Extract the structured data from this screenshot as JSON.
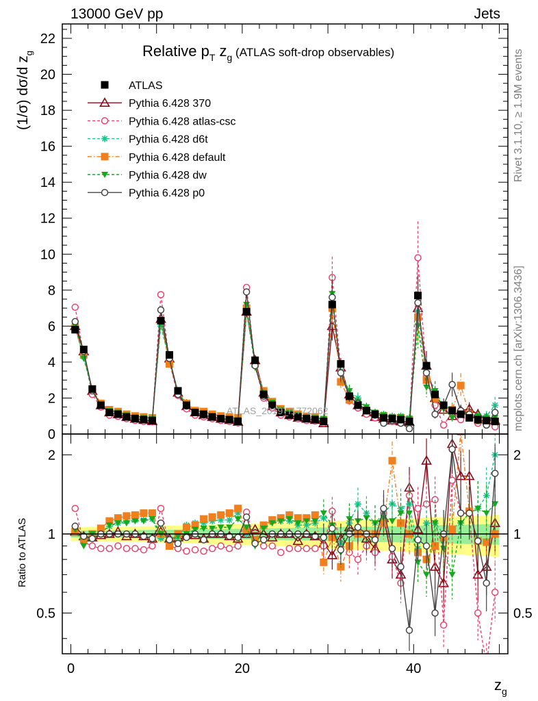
{
  "chart_data": {
    "type": "line",
    "header_left": "13000 GeV pp",
    "header_right": "Jets",
    "title_main": "Relative p",
    "title_sub_T": "T",
    "title_zg": " z",
    "title_sub_g": "g",
    "title_paren": " (ATLAS soft-drop observables)",
    "ylabel": "(1/σ) dσ/d z",
    "ylabel_sub": "g",
    "ratio_ylabel": "Ratio to ATLAS",
    "xlabel": "z",
    "xlabel_sub": "g",
    "watermark": "ATLAS_2019_I1772062",
    "side_text_1": "Rivet 3.1.10, ≥ 1.9M events",
    "side_text_2": "mcplots.cern.ch [arXiv:1306.3436]",
    "xlim": [
      -1,
      51
    ],
    "ylim": [
      0,
      22.8
    ],
    "ratio_ylim": [
      0.35,
      2.4
    ],
    "x_ticks": [
      0,
      20,
      40
    ],
    "x_tick_labels": [
      "0",
      "20",
      "40"
    ],
    "y_ticks": [
      0,
      2,
      4,
      6,
      8,
      10,
      12,
      14,
      16,
      18,
      20,
      22
    ],
    "y_tick_labels": [
      "0",
      "2",
      "4",
      "6",
      "8",
      "10",
      "12",
      "14",
      "16",
      "18",
      "20",
      "22"
    ],
    "ratio_ticks": [
      0.5,
      1,
      2
    ],
    "ratio_tick_labels_left": [
      "0.5",
      "1",
      "2"
    ],
    "ratio_tick_labels_right": [
      "0.5",
      "1",
      "2"
    ],
    "x": [
      0.5,
      1.5,
      2.5,
      3.5,
      4.5,
      5.5,
      6.5,
      7.5,
      8.5,
      9.5,
      10.5,
      11.5,
      12.5,
      13.5,
      14.5,
      15.5,
      16.5,
      17.5,
      18.5,
      19.5,
      20.5,
      21.5,
      22.5,
      23.5,
      24.5,
      25.5,
      26.5,
      27.5,
      28.5,
      29.5,
      30.5,
      31.5,
      32.5,
      33.5,
      34.5,
      35.5,
      36.5,
      37.5,
      38.5,
      39.5,
      40.5,
      41.5,
      42.5,
      43.5,
      44.5,
      45.5,
      46.5,
      47.5,
      48.5,
      49.5
    ],
    "series": [
      {
        "name": "ATLAS",
        "color": "#000000",
        "marker": "square-filled",
        "dash": "none",
        "values": [
          5.8,
          4.7,
          2.5,
          1.6,
          1.2,
          1.1,
          0.95,
          0.85,
          0.8,
          0.75,
          6.3,
          4.4,
          2.4,
          1.6,
          1.2,
          1.1,
          0.95,
          0.85,
          0.8,
          0.7,
          6.8,
          4.1,
          2.2,
          1.6,
          1.2,
          1.05,
          0.95,
          0.85,
          0.8,
          0.7,
          7.2,
          3.9,
          2.1,
          1.6,
          1.3,
          1.1,
          0.9,
          0.85,
          0.8,
          0.7,
          7.7,
          3.8,
          2.2,
          1.6,
          1.3,
          1.1,
          0.9,
          0.8,
          0.75,
          0.7
        ],
        "ratio": [
          1,
          1,
          1,
          1,
          1,
          1,
          1,
          1,
          1,
          1,
          1,
          1,
          1,
          1,
          1,
          1,
          1,
          1,
          1,
          1,
          1,
          1,
          1,
          1,
          1,
          1,
          1,
          1,
          1,
          1,
          1,
          1,
          1,
          1,
          1,
          1,
          1,
          1,
          1,
          1,
          1,
          1,
          1,
          1,
          1,
          1,
          1,
          1,
          1,
          1
        ]
      },
      {
        "name": "Pythia 6.428 370",
        "color": "#8b0a1a",
        "marker": "triangle-open",
        "dash": "none",
        "values": [
          6.0,
          4.6,
          2.4,
          1.6,
          1.2,
          1.1,
          0.95,
          0.85,
          0.78,
          0.72,
          6.4,
          4.2,
          2.3,
          1.55,
          1.2,
          1.05,
          0.95,
          0.85,
          0.78,
          0.68,
          6.8,
          4.1,
          2.3,
          1.55,
          1.2,
          1.05,
          0.9,
          0.85,
          0.78,
          0.6,
          6.0,
          3.7,
          2.2,
          1.6,
          1.2,
          0.95,
          0.85,
          0.75,
          0.7,
          0.68,
          7.0,
          3.8,
          2.0,
          1.35,
          1.0,
          1.3,
          1.4,
          1.1,
          0.9,
          0.75
        ],
        "ratio": [
          1.02,
          0.98,
          0.97,
          0.99,
          1.0,
          1.02,
          0.98,
          1.0,
          0.98,
          0.96,
          1.02,
          0.96,
          0.97,
          0.99,
          0.99,
          0.96,
          1.0,
          1.0,
          0.98,
          0.96,
          1.0,
          1.04,
          1.0,
          0.97,
          1.0,
          1.0,
          0.94,
          1.0,
          0.98,
          0.92,
          0.83,
          0.96,
          1.06,
          1.02,
          0.96,
          0.88,
          1.15,
          0.8,
          0.7,
          1.5,
          1.04,
          1.9,
          0.75,
          0.65,
          2.2,
          1.66,
          1.66,
          0.7,
          0.75,
          1.1
        ]
      },
      {
        "name": "Pythia 6.428 atlas-csc",
        "color": "#e8436e",
        "marker": "circle-open",
        "dash": "dashed",
        "values": [
          7.05,
          4.4,
          2.2,
          1.5,
          1.05,
          0.98,
          0.85,
          0.75,
          0.7,
          0.68,
          7.75,
          4.0,
          2.15,
          1.4,
          1.05,
          0.95,
          0.85,
          0.75,
          0.7,
          0.62,
          8.15,
          3.8,
          2.0,
          1.45,
          1.05,
          0.95,
          0.85,
          0.75,
          0.72,
          0.6,
          8.7,
          3.6,
          1.85,
          1.45,
          1.1,
          0.9,
          0.8,
          0.7,
          0.7,
          0.62,
          9.8,
          3.2,
          1.6,
          0.5,
          1.2,
          0.8,
          1.0,
          0.6,
          0.5,
          0.4
        ],
        "ratio": [
          1.25,
          0.93,
          0.9,
          0.88,
          0.88,
          0.9,
          0.88,
          0.88,
          0.87,
          0.9,
          1.25,
          0.9,
          0.88,
          0.86,
          0.87,
          0.86,
          0.88,
          0.9,
          0.88,
          0.9,
          1.21,
          0.93,
          0.9,
          0.9,
          0.85,
          0.88,
          0.88,
          0.88,
          0.88,
          0.9,
          1.22,
          0.92,
          0.85,
          0.8,
          0.9,
          0.85,
          1.2,
          0.82,
          0.65,
          1.4,
          1.25,
          1.3,
          1.35,
          0.45,
          1.6,
          1.2,
          1.2,
          0.5,
          0.3,
          0.6
        ]
      },
      {
        "name": "Pythia 6.428 d6t",
        "color": "#19c28a",
        "marker": "star",
        "dash": "dashed",
        "values": [
          5.9,
          4.3,
          2.4,
          1.65,
          1.3,
          1.2,
          1.05,
          0.95,
          0.9,
          0.85,
          6.0,
          4.1,
          2.3,
          1.75,
          1.3,
          1.2,
          1.05,
          0.95,
          0.9,
          0.85,
          6.8,
          3.8,
          2.4,
          1.8,
          1.35,
          1.2,
          1.0,
          0.9,
          0.9,
          0.8,
          7.6,
          3.5,
          2.3,
          2.0,
          1.5,
          1.2,
          1.1,
          1.0,
          1.0,
          0.9,
          6.8,
          3.5,
          2.4,
          1.6,
          1.4,
          1.2,
          1.1,
          1.0,
          1.0,
          1.6
        ],
        "ratio": [
          1.05,
          0.94,
          0.97,
          1.02,
          1.07,
          1.1,
          1.12,
          1.13,
          1.13,
          1.14,
          0.96,
          0.94,
          0.97,
          1.08,
          1.1,
          1.1,
          1.12,
          1.13,
          1.13,
          1.2,
          1.0,
          0.94,
          1.08,
          1.13,
          1.12,
          1.12,
          1.08,
          1.08,
          1.1,
          1.15,
          1.06,
          0.92,
          1.1,
          1.3,
          1.2,
          1.1,
          1.2,
          1.3,
          1.25,
          1.3,
          0.88,
          1.1,
          1.1,
          1.0,
          1.05,
          1.1,
          1.2,
          1.25,
          1.4,
          2.0
        ]
      },
      {
        "name": "Pythia 6.428 default",
        "color": "#f07f1e",
        "marker": "square-filled",
        "dash": "dashdot",
        "values": [
          5.9,
          4.4,
          2.5,
          1.7,
          1.35,
          1.25,
          1.1,
          1.0,
          0.95,
          0.9,
          6.3,
          3.9,
          2.4,
          1.7,
          1.3,
          1.25,
          1.1,
          1.0,
          0.95,
          0.9,
          7.0,
          3.9,
          2.4,
          1.8,
          1.4,
          1.25,
          1.1,
          0.98,
          0.95,
          0.8,
          7.0,
          2.9,
          1.9,
          1.6,
          1.3,
          1.1,
          1.0,
          0.9,
          0.9,
          0.8,
          6.5,
          3.0,
          2.0,
          1.55,
          1.35,
          2.7,
          1.1,
          0.75,
          0.7,
          0.7
        ],
        "ratio": [
          1.02,
          0.95,
          1.0,
          1.05,
          1.12,
          1.15,
          1.17,
          1.18,
          1.2,
          1.2,
          1.0,
          0.9,
          1.0,
          1.06,
          1.08,
          1.14,
          1.16,
          1.18,
          1.2,
          1.25,
          1.03,
          0.95,
          1.08,
          1.13,
          1.15,
          1.18,
          1.15,
          1.15,
          1.18,
          0.78,
          0.97,
          0.75,
          0.9,
          1.0,
          1.0,
          1.0,
          1.1,
          1.9,
          1.1,
          1.0,
          0.85,
          0.8,
          0.9,
          0.97,
          1.04,
          2.45,
          1.22,
          0.94,
          0.93,
          1.0
        ]
      },
      {
        "name": "Pythia 6.428 dw",
        "color": "#18a81e",
        "marker": "triangle-down-filled",
        "dash": "dashed",
        "values": [
          6.0,
          4.2,
          2.5,
          1.6,
          1.3,
          1.2,
          1.05,
          0.95,
          0.9,
          0.85,
          6.3,
          4.2,
          2.35,
          1.6,
          1.25,
          1.15,
          1.0,
          0.9,
          0.85,
          0.8,
          7.2,
          3.7,
          2.3,
          1.75,
          1.35,
          1.2,
          1.05,
          0.95,
          0.9,
          0.85,
          7.8,
          3.3,
          2.4,
          1.8,
          1.5,
          1.2,
          1.05,
          0.95,
          0.95,
          0.85,
          6.0,
          2.6,
          2.4,
          1.4,
          0.9,
          1.2,
          1.1,
          1.0,
          0.9,
          0.9
        ],
        "ratio": [
          1.04,
          0.9,
          1.0,
          1.0,
          1.08,
          1.1,
          1.1,
          1.12,
          1.12,
          1.14,
          1.0,
          0.95,
          0.98,
          1.0,
          1.04,
          1.05,
          1.05,
          1.06,
          1.06,
          1.14,
          1.06,
          0.9,
          1.05,
          1.1,
          1.12,
          1.14,
          1.1,
          1.12,
          1.12,
          1.2,
          1.08,
          0.85,
          1.14,
          1.12,
          1.15,
          1.1,
          1.15,
          1.12,
          1.2,
          1.2,
          0.78,
          0.7,
          1.1,
          0.88,
          0.7,
          1.1,
          1.2,
          1.25,
          1.2,
          1.3
        ]
      },
      {
        "name": "Pythia 6.428 p0",
        "color": "#444444",
        "marker": "circle-open",
        "dash": "none",
        "values": [
          6.25,
          4.6,
          2.4,
          1.6,
          1.2,
          1.1,
          0.95,
          0.85,
          0.8,
          0.72,
          6.9,
          4.2,
          2.2,
          1.55,
          1.2,
          1.05,
          0.95,
          0.85,
          0.78,
          0.68,
          7.9,
          3.8,
          2.1,
          1.6,
          1.2,
          1.05,
          0.95,
          0.85,
          0.8,
          0.68,
          7.6,
          3.4,
          2.1,
          1.7,
          1.3,
          1.05,
          0.6,
          0.75,
          0.6,
          0.3,
          7.3,
          3.4,
          1.1,
          1.6,
          2.75,
          1.3,
          1.1,
          0.75,
          0.5,
          1.2
        ],
        "ratio": [
          1.07,
          0.98,
          0.96,
          1.0,
          1.0,
          1.0,
          1.0,
          1.0,
          0.98,
          0.96,
          1.1,
          0.95,
          0.92,
          0.97,
          1.0,
          0.95,
          1.0,
          1.0,
          0.98,
          0.97,
          1.16,
          0.92,
          0.95,
          1.0,
          1.0,
          1.0,
          1.0,
          1.0,
          0.98,
          0.97,
          1.05,
          0.87,
          1.0,
          1.06,
          1.0,
          0.95,
          1.25,
          0.88,
          0.75,
          0.43,
          0.95,
          0.9,
          0.5,
          1.0,
          2.1,
          1.2,
          1.2,
          0.94,
          0.65,
          1.7
        ]
      }
    ]
  }
}
